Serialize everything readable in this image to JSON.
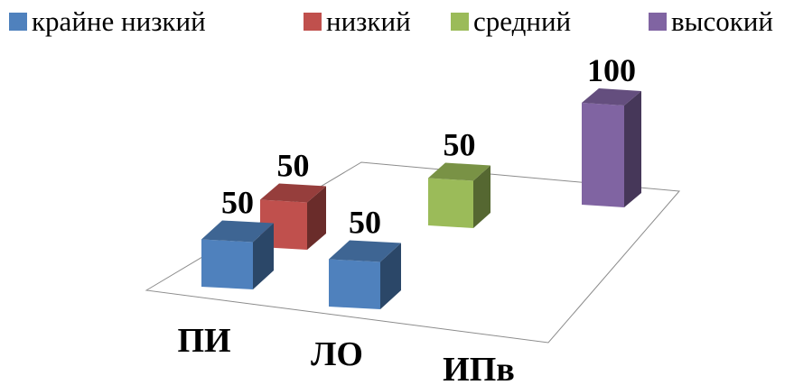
{
  "chart_data": {
    "type": "bar",
    "subtype": "3d-column",
    "categories": [
      "ПИ",
      "ЛО",
      "ИПв"
    ],
    "series": [
      {
        "name": "крайне низкий",
        "color": "#4f81bd",
        "values": [
          50,
          50,
          null
        ]
      },
      {
        "name": "низкий",
        "color": "#c0504d",
        "values": [
          50,
          null,
          null
        ]
      },
      {
        "name": "средний",
        "color": "#9bbb59",
        "values": [
          null,
          null,
          50
        ]
      },
      {
        "name": "высокий",
        "color": "#8064a2",
        "values": [
          null,
          null,
          100
        ]
      }
    ],
    "data_labels": true,
    "legend_position": "top",
    "grid": false,
    "title": "",
    "xlabel": "",
    "ylabel": ""
  }
}
